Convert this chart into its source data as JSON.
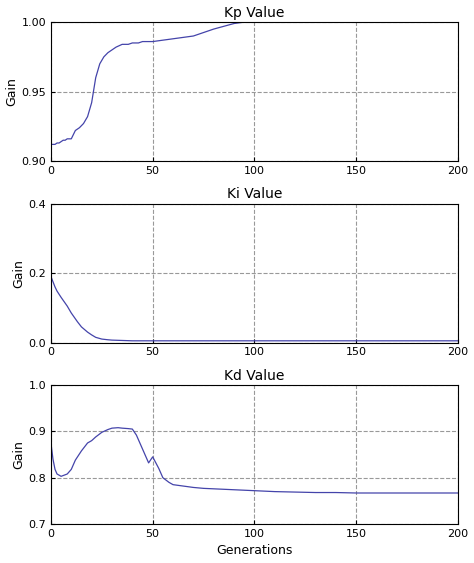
{
  "title1": "Kp Value",
  "title2": "Ki Value",
  "title3": "Kd Value",
  "xlabel": "Generations",
  "ylabel": "Gain",
  "xlim": [
    0,
    200
  ],
  "kp_ylim": [
    0.9,
    1.0
  ],
  "ki_ylim": [
    0.0,
    0.4
  ],
  "kd_ylim": [
    0.7,
    1.0
  ],
  "kp_yticks": [
    0.9,
    0.95,
    1.0
  ],
  "ki_yticks": [
    0.0,
    0.2,
    0.4
  ],
  "kd_yticks": [
    0.7,
    0.8,
    0.9,
    1.0
  ],
  "xticks": [
    0,
    50,
    100,
    150,
    200
  ],
  "line_color": "#4444aa",
  "grid_color": "#999999",
  "bg_color": "#ffffff",
  "kp_x": [
    0,
    1,
    2,
    3,
    4,
    5,
    6,
    7,
    8,
    10,
    12,
    14,
    16,
    18,
    20,
    22,
    24,
    26,
    28,
    30,
    32,
    35,
    38,
    40,
    43,
    45,
    48,
    50,
    55,
    60,
    70,
    80,
    90,
    95,
    100,
    110,
    120,
    150,
    180,
    200
  ],
  "kp_y": [
    0.912,
    0.912,
    0.912,
    0.913,
    0.913,
    0.914,
    0.915,
    0.915,
    0.916,
    0.916,
    0.922,
    0.924,
    0.927,
    0.932,
    0.942,
    0.96,
    0.97,
    0.975,
    0.978,
    0.98,
    0.982,
    0.984,
    0.984,
    0.985,
    0.985,
    0.986,
    0.986,
    0.986,
    0.987,
    0.988,
    0.99,
    0.995,
    0.999,
    1.0,
    1.0,
    1.0,
    1.0,
    1.0,
    1.0,
    1.0
  ],
  "ki_x": [
    0,
    1,
    2,
    3,
    5,
    8,
    10,
    13,
    15,
    18,
    20,
    22,
    25,
    28,
    30,
    35,
    40,
    45,
    50,
    60,
    70,
    80,
    90,
    100,
    110,
    120,
    130,
    140,
    150,
    160,
    170,
    180,
    190,
    200
  ],
  "ki_y": [
    0.19,
    0.175,
    0.16,
    0.148,
    0.13,
    0.105,
    0.085,
    0.06,
    0.045,
    0.03,
    0.022,
    0.015,
    0.01,
    0.008,
    0.007,
    0.006,
    0.005,
    0.005,
    0.005,
    0.005,
    0.005,
    0.005,
    0.005,
    0.005,
    0.005,
    0.005,
    0.005,
    0.005,
    0.005,
    0.005,
    0.005,
    0.005,
    0.005,
    0.005
  ],
  "kd_x": [
    0,
    1,
    2,
    3,
    5,
    8,
    10,
    12,
    15,
    18,
    20,
    22,
    25,
    28,
    30,
    33,
    35,
    38,
    40,
    42,
    45,
    48,
    50,
    53,
    55,
    58,
    60,
    65,
    70,
    75,
    80,
    85,
    90,
    95,
    100,
    110,
    120,
    130,
    140,
    150,
    160,
    170,
    180,
    190,
    200
  ],
  "kd_y": [
    0.875,
    0.84,
    0.818,
    0.808,
    0.803,
    0.808,
    0.818,
    0.838,
    0.858,
    0.875,
    0.88,
    0.888,
    0.898,
    0.904,
    0.907,
    0.908,
    0.907,
    0.906,
    0.905,
    0.892,
    0.862,
    0.832,
    0.845,
    0.82,
    0.8,
    0.79,
    0.785,
    0.782,
    0.779,
    0.777,
    0.776,
    0.775,
    0.774,
    0.773,
    0.772,
    0.77,
    0.769,
    0.768,
    0.768,
    0.767,
    0.767,
    0.767,
    0.767,
    0.767,
    0.767
  ]
}
